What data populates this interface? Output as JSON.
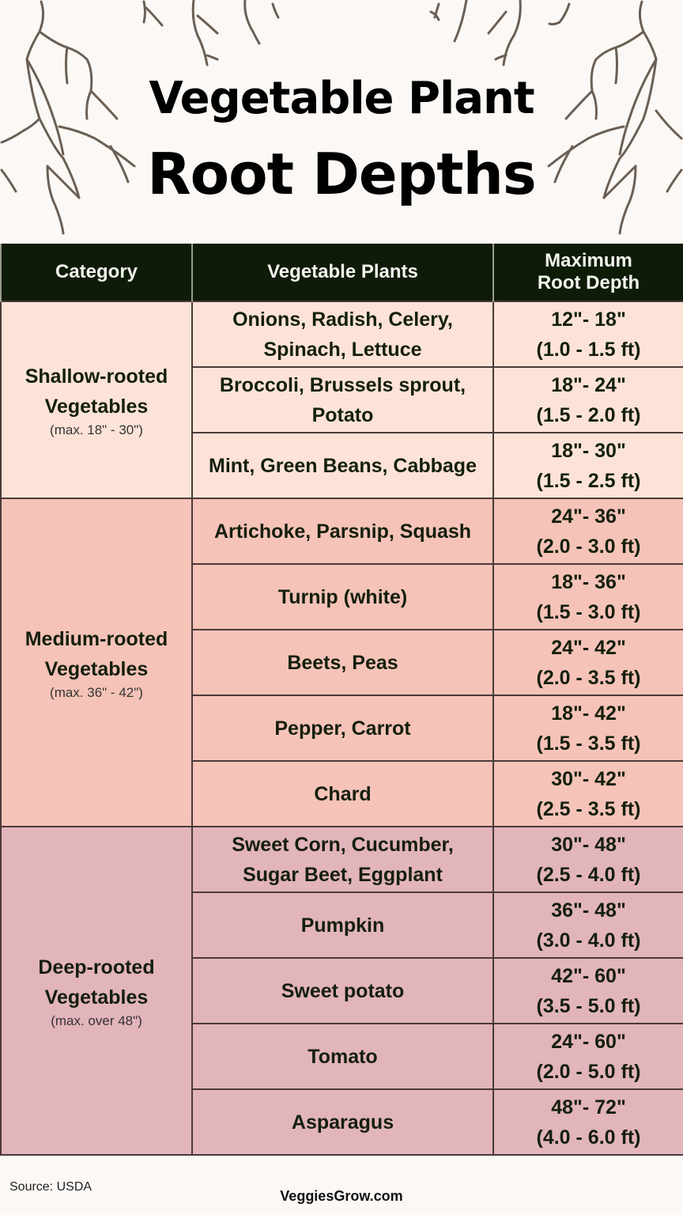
{
  "header": {
    "title_line1": "Vegetable Plant",
    "title_line2": "Root Depths"
  },
  "table": {
    "columns": [
      "Category",
      "Vegetable Plants",
      "Maximum Root Depth"
    ],
    "column_header_lines": {
      "depth_line1": "Maximum",
      "depth_line2": "Root Depth"
    },
    "groups": [
      {
        "category": "Shallow-rooted Vegetables",
        "category_line1": "Shallow-rooted",
        "category_line2": "Vegetables",
        "range_note": "(max. 18\" - 30\")",
        "color": "#fde3d7",
        "rows": [
          {
            "plants": "Onions, Radish, Celery, Spinach, Lettuce",
            "inches": "12\"- 18\"",
            "feet": "(1.0 - 1.5 ft)"
          },
          {
            "plants": "Broccoli, Brussels sprout, Potato",
            "inches": "18\"- 24\"",
            "feet": "(1.5 - 2.0 ft)"
          },
          {
            "plants": "Mint, Green Beans, Cabbage",
            "inches": "18\"- 30\"",
            "feet": "(1.5 - 2.5 ft)"
          }
        ]
      },
      {
        "category": "Medium-rooted Vegetables",
        "category_line1": "Medium-rooted",
        "category_line2": "Vegetables",
        "range_note": "(max. 36\" - 42\")",
        "color": "#f6c3b8",
        "rows": [
          {
            "plants": "Artichoke, Parsnip, Squash",
            "inches": "24\"- 36\"",
            "feet": "(2.0 - 3.0 ft)"
          },
          {
            "plants": "Turnip (white)",
            "inches": "18\"- 36\"",
            "feet": "(1.5 - 3.0 ft)"
          },
          {
            "plants": "Beets, Peas",
            "inches": "24\"- 42\"",
            "feet": "(2.0 - 3.5 ft)"
          },
          {
            "plants": "Pepper, Carrot",
            "inches": "18\"- 42\"",
            "feet": "(1.5 - 3.5 ft)"
          },
          {
            "plants": "Chard",
            "inches": "30\"- 42\"",
            "feet": "(2.5 - 3.5 ft)"
          }
        ]
      },
      {
        "category": "Deep-rooted Vegetables",
        "category_line1": "Deep-rooted",
        "category_line2": "Vegetables",
        "range_note": "(max. over 48\")",
        "color": "#e2b4bb",
        "rows": [
          {
            "plants": "Sweet Corn, Cucumber, Sugar Beet, Eggplant",
            "inches": "30\"- 48\"",
            "feet": "(2.5 - 4.0 ft)"
          },
          {
            "plants": "Pumpkin",
            "inches": "36\"- 48\"",
            "feet": "(3.0 - 4.0 ft)"
          },
          {
            "plants": "Sweet potato",
            "inches": "42\"- 60\"",
            "feet": "(3.5 - 5.0 ft)"
          },
          {
            "plants": "Tomato",
            "inches": "24\"- 60\"",
            "feet": "(2.0 - 5.0 ft)"
          },
          {
            "plants": "Asparagus",
            "inches": "48\"- 72\"",
            "feet": "(4.0 - 6.0 ft)"
          }
        ]
      }
    ]
  },
  "footer": {
    "source": "Source: USDA",
    "site": "VeggiesGrow.com"
  },
  "colors": {
    "background": "#fcf8f5",
    "header_bg": "#0e1c07",
    "root_stroke": "#6b5f55"
  },
  "icons": [
    "root-decoration-left",
    "root-decoration-right",
    "root-decoration-top"
  ]
}
